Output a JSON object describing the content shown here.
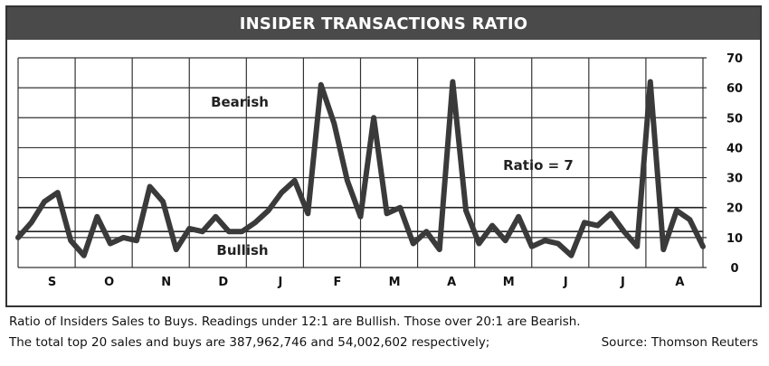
{
  "chart_data": {
    "type": "line",
    "title": "INSIDER TRANSACTIONS RATIO",
    "x_tick_labels": [
      "S",
      "O",
      "N",
      "D",
      "J",
      "F",
      "M",
      "A",
      "M",
      "J",
      "J",
      "A"
    ],
    "y_ticks": [
      0,
      10,
      20,
      30,
      40,
      50,
      60,
      70
    ],
    "ylim": [
      0,
      70
    ],
    "grid": true,
    "reference_lines": [
      {
        "label": "Bearish",
        "value": 20
      },
      {
        "label": "Bullish",
        "value": 12
      }
    ],
    "current_label": "Ratio = 7",
    "series": [
      {
        "values": [
          10,
          15,
          22,
          25,
          9,
          4,
          17,
          8,
          10,
          9,
          27,
          22,
          6,
          13,
          12,
          17,
          12,
          12,
          15,
          19,
          25,
          29,
          18,
          61,
          48,
          29,
          17,
          50,
          18,
          20,
          8,
          12,
          6,
          62,
          19,
          8,
          14,
          9,
          17,
          7,
          9,
          8,
          4,
          15,
          14,
          18,
          12,
          7,
          62,
          6,
          19,
          16,
          7
        ]
      }
    ],
    "colors": {
      "line": "#3a3a3a",
      "grid": "#333333",
      "title_bar": "#4a4a4a"
    }
  },
  "footnote": {
    "line1": "Ratio of Insiders Sales to Buys. Readings under 12:1 are Bullish. Those over 20:1 are Bearish.",
    "line2": "The total top 20 sales and buys are 387,962,746 and 54,002,602 respectively;",
    "source": "Source: Thomson Reuters"
  }
}
